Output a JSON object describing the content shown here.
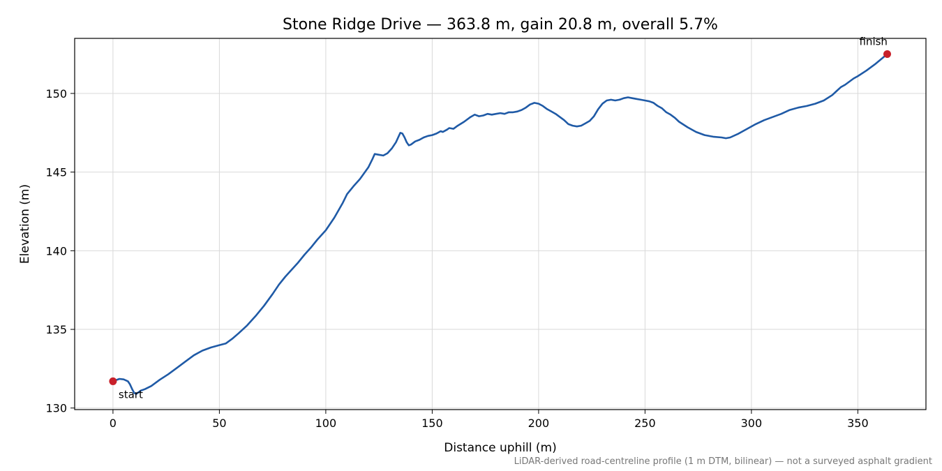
{
  "chart_data": {
    "type": "line",
    "title": "Stone Ridge Drive — 363.8 m, gain 20.8 m, overall 5.7%",
    "xlabel": "Distance uphill (m)",
    "ylabel": "Elevation (m)",
    "xlim": [
      -18,
      382
    ],
    "ylim": [
      129.9,
      153.5
    ],
    "xticks": [
      0,
      50,
      100,
      150,
      200,
      250,
      300,
      350
    ],
    "yticks": [
      130,
      135,
      140,
      145,
      150
    ],
    "grid": true,
    "line_color": "#1f5aa6",
    "marker_color": "#c8202a",
    "series": [
      {
        "x": [
          0,
          3,
          5,
          7,
          8,
          9,
          10,
          11,
          12,
          13,
          15,
          18,
          22,
          26,
          30,
          34,
          38,
          42,
          46,
          50,
          53,
          56,
          59,
          63,
          67,
          71,
          75,
          78,
          81,
          84,
          87,
          90,
          93,
          96,
          100,
          104,
          108,
          110,
          113,
          116,
          120,
          122,
          123,
          125,
          127,
          129,
          131,
          133,
          134,
          135,
          136,
          137,
          138,
          139,
          140,
          142,
          144,
          146,
          148,
          150,
          152,
          154,
          155,
          157,
          158,
          160,
          162,
          165,
          168,
          170,
          172,
          174,
          176,
          178,
          180,
          182,
          184,
          186,
          188,
          190,
          192,
          194,
          196,
          198,
          200,
          202,
          204,
          206,
          208,
          210,
          212,
          214,
          216,
          218,
          220,
          222,
          224,
          226,
          228,
          230,
          232,
          234,
          236,
          238,
          240,
          242,
          244,
          246,
          248,
          250,
          252,
          254,
          256,
          258,
          260,
          262,
          264,
          266,
          270,
          274,
          278,
          282,
          286,
          288,
          290,
          294,
          298,
          302,
          306,
          310,
          314,
          318,
          322,
          326,
          330,
          334,
          338,
          340,
          342,
          344,
          346,
          348,
          350,
          354,
          358,
          363.8
        ],
        "y": [
          131.7,
          131.85,
          131.82,
          131.7,
          131.5,
          131.2,
          130.95,
          130.9,
          131.0,
          131.1,
          131.2,
          131.4,
          131.8,
          132.15,
          132.55,
          132.95,
          133.35,
          133.65,
          133.85,
          134.0,
          134.1,
          134.4,
          134.75,
          135.25,
          135.85,
          136.5,
          137.25,
          137.85,
          138.35,
          138.8,
          139.25,
          139.75,
          140.2,
          140.7,
          141.3,
          142.1,
          143.05,
          143.6,
          144.1,
          144.55,
          145.3,
          145.85,
          146.15,
          146.1,
          146.05,
          146.2,
          146.5,
          146.9,
          147.2,
          147.5,
          147.45,
          147.2,
          146.9,
          146.7,
          146.75,
          146.95,
          147.05,
          147.2,
          147.3,
          147.35,
          147.45,
          147.6,
          147.55,
          147.7,
          147.8,
          147.75,
          147.95,
          148.2,
          148.5,
          148.65,
          148.55,
          148.6,
          148.7,
          148.65,
          148.7,
          148.75,
          148.7,
          148.8,
          148.8,
          148.85,
          148.95,
          149.1,
          149.3,
          149.4,
          149.35,
          149.2,
          149.0,
          148.85,
          148.7,
          148.5,
          148.3,
          148.05,
          147.95,
          147.9,
          147.95,
          148.1,
          148.25,
          148.55,
          149.0,
          149.35,
          149.55,
          149.6,
          149.55,
          149.6,
          149.7,
          149.75,
          149.7,
          149.65,
          149.6,
          149.55,
          149.5,
          149.4,
          149.2,
          149.05,
          148.8,
          148.65,
          148.45,
          148.2,
          147.85,
          147.55,
          147.35,
          147.25,
          147.2,
          147.15,
          147.2,
          147.45,
          147.75,
          148.05,
          148.3,
          148.5,
          148.7,
          148.95,
          149.1,
          149.2,
          149.35,
          149.55,
          149.9,
          150.15,
          150.4,
          150.55,
          150.75,
          150.95,
          151.1,
          151.45,
          151.85,
          152.5
        ]
      }
    ],
    "annotations": [
      {
        "label": "start",
        "x": 0,
        "y": 131.7
      },
      {
        "label": "finish",
        "x": 363.8,
        "y": 152.5
      }
    ],
    "footnote": "LiDAR-derived road-centreline profile (1 m DTM, bilinear) — not a surveyed asphalt gradient"
  }
}
